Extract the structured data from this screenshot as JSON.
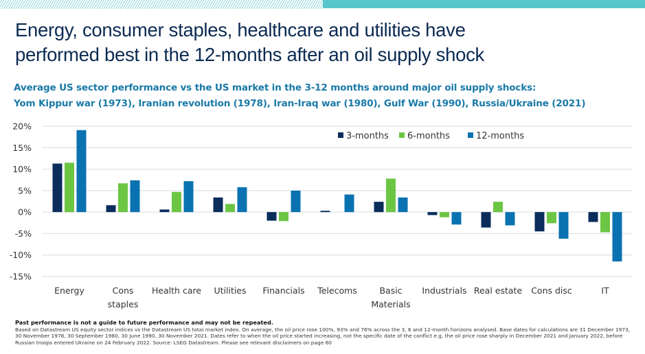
{
  "header": {
    "title_line1": "Energy, consumer staples, healthcare and utilities have",
    "title_line2": "performed best in the 12-months after an oil supply shock",
    "subtitle_line1": "Average US sector performance vs the US market in the 3-12 months around major oil supply shocks:",
    "subtitle_line2": "Yom Kippur war (1973), Iranian revolution (1978), Iran-Iraq war (1980), Gulf War (1990), Russia/Ukraine (2021)"
  },
  "colors": {
    "topbar": "#58c6cb",
    "title": "#0b2a52",
    "subtitle": "#1a7aa8",
    "series_3m": "#0a2d5c",
    "series_6m": "#6cc644",
    "series_12m": "#0a72b0",
    "grid": "#e3e6ea"
  },
  "chart_data": {
    "type": "bar",
    "title": "Average US sector performance vs the US market in the 3-12 months around major oil supply shocks",
    "xlabel": "",
    "ylabel": "",
    "ylim": [
      -15,
      20
    ],
    "yticks": [
      20,
      15,
      10,
      5,
      0,
      -5,
      -10,
      -15
    ],
    "ytick_labels": [
      "20%",
      "15%",
      "10%",
      "5%",
      "0%",
      "-5%",
      "-10%",
      "-15%"
    ],
    "grid": true,
    "legend_position": "top-right",
    "categories": [
      "Energy",
      "Cons staples",
      "Health care",
      "Utilities",
      "Financials",
      "Telecoms",
      "Basic Materials",
      "Industrials",
      "Real estate",
      "Cons disc",
      "IT"
    ],
    "category_label_lines": [
      [
        "Energy"
      ],
      [
        "Cons",
        "staples"
      ],
      [
        "Health care"
      ],
      [
        "Utilities"
      ],
      [
        "Financials"
      ],
      [
        "Telecoms"
      ],
      [
        "Basic",
        "Materials"
      ],
      [
        "Industrials"
      ],
      [
        "Real estate"
      ],
      [
        "Cons disc"
      ],
      [
        "IT"
      ]
    ],
    "series": [
      {
        "name": "3-months",
        "color": "#0a2d5c",
        "values": [
          11.3,
          1.6,
          0.6,
          3.4,
          -2.0,
          0.3,
          2.4,
          -0.7,
          -3.6,
          -4.5,
          -2.3
        ]
      },
      {
        "name": "6-months",
        "color": "#6cc644",
        "values": [
          11.5,
          6.7,
          4.7,
          1.9,
          -2.1,
          0.0,
          7.8,
          -1.2,
          2.4,
          -2.6,
          -4.7
        ]
      },
      {
        "name": "12-months",
        "color": "#0a72b0",
        "values": [
          19.1,
          7.4,
          7.2,
          5.8,
          5.0,
          4.1,
          3.4,
          -2.9,
          -3.1,
          -6.2,
          -11.5
        ]
      }
    ]
  },
  "footnote": {
    "disclaimer_bold": "Past performance is not a guide to future performance and may not be repeated.",
    "text": "Based on Datastream US equity sector indices vs the Datastream US total market index. On average, the oil price rose 100%, 93% and 76% across the 3, 6 and 12-month horizons analysed. Base dates for calculations are 31 December 1973, 30 November 1978, 30 September 1980, 30 June 1990, 30 November 2021. Dates refer to when the oil price started increasing, not the specific date of the conflict e.g. the oil price rose sharply in December 2021 and January 2022, before Russian troops entered Ukraine on 24 February 2022. Source: LSEG Datastream. Please see relevant disclaimers on page 60"
  }
}
